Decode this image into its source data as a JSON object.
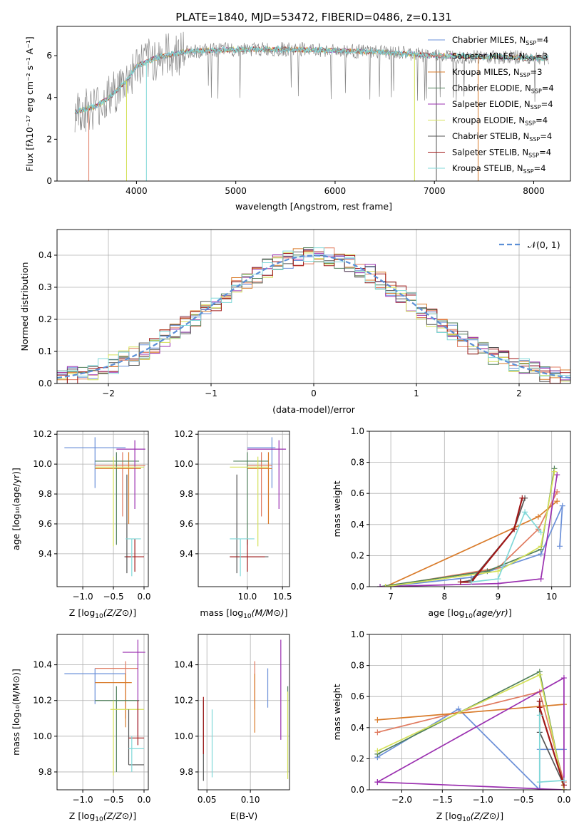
{
  "figure_title": "PLATE=1840, MJD=53472, FIBERID=0486, z=0.131",
  "series_styles": [
    {
      "name": "Chabrier MILES",
      "nssp": "4",
      "color": "#6a8fd8"
    },
    {
      "name": "Salpeter MILES",
      "nssp": "3",
      "color": "#e07a5f"
    },
    {
      "name": "Kroupa MILES",
      "nssp": "3",
      "color": "#d97b2a"
    },
    {
      "name": "Chabrier ELODIE",
      "nssp": "4",
      "color": "#4f7f5a"
    },
    {
      "name": "Salpeter ELODIE",
      "nssp": "4",
      "color": "#9b30b0"
    },
    {
      "name": "Kroupa ELODIE",
      "nssp": "4",
      "color": "#d4e157"
    },
    {
      "name": "Chabrier STELIB",
      "nssp": "4",
      "color": "#555555"
    },
    {
      "name": "Salpeter STELIB",
      "nssp": "4",
      "color": "#a01818"
    },
    {
      "name": "Kroupa STELIB",
      "nssp": "4",
      "color": "#80d8d8"
    }
  ],
  "chart_data": [
    {
      "id": "spectrum",
      "type": "line",
      "title": "PLATE=1840, MJD=53472, FIBERID=0486, z=0.131",
      "xlabel": "wavelength [Angstrom, rest frame]",
      "ylabel": "Flux [f_λ10^-17 erg cm^-2 s^-1 A^-1]",
      "xlim": [
        3200,
        8370
      ],
      "ylim": [
        0,
        7.4
      ],
      "xticks": [
        4000,
        5000,
        6000,
        7000,
        8000
      ],
      "yticks": [
        0,
        2,
        4,
        6
      ],
      "legend_position": "upper-right",
      "legend": [
        "Chabrier MILES, N_SSP=4",
        "Salpeter MILES, N_SSP=3",
        "Kroupa MILES, N_SSP=3",
        "Chabrier ELODIE, N_SSP=4",
        "Salpeter ELODIE, N_SSP=4",
        "Kroupa ELODIE, N_SSP=4",
        "Chabrier STELIB, N_SSP=4",
        "Salpeter STELIB, N_SSP=4",
        "Kroupa STELIB, N_SSP=4"
      ],
      "continuum": {
        "x": [
          3380,
          3600,
          3700,
          3900,
          4000,
          4200,
          4500,
          5000,
          5500,
          6000,
          6500,
          7000,
          7500,
          8000,
          8150
        ],
        "y": [
          3.3,
          3.6,
          3.9,
          4.8,
          5.5,
          5.9,
          6.2,
          6.3,
          6.3,
          6.25,
          6.15,
          6.0,
          5.95,
          5.9,
          5.85
        ]
      }
    },
    {
      "id": "residuals",
      "type": "line",
      "xlabel": "(data-model)/error",
      "ylabel": "Normed distribution",
      "xlim": [
        -2.5,
        2.5
      ],
      "ylim": [
        0,
        0.48
      ],
      "xticks": [
        -2,
        -1,
        0,
        1,
        2
      ],
      "yticks": [
        0.0,
        0.1,
        0.2,
        0.3,
        0.4
      ],
      "legend": [
        "𝒩(0, 1)"
      ],
      "legend_position": "upper-right",
      "gaussian": {
        "mu": 0,
        "sigma": 1
      }
    },
    {
      "id": "age-vs-Z",
      "type": "scatter",
      "xlabel": "Z [log10(Z/Z⊙)]",
      "ylabel": "age [log10(age/yr)]",
      "xlim": [
        -1.42,
        0.07
      ],
      "ylim": [
        9.18,
        10.22
      ],
      "xticks": [
        -1.0,
        -0.5,
        0.0
      ],
      "yticks": [
        9.4,
        9.6,
        9.8,
        10.0,
        10.2
      ],
      "points": [
        {
          "s": 0,
          "x": -0.8,
          "y": 10.11,
          "xe": [
            -1.3,
            -0.3
          ],
          "ye": [
            9.84,
            10.18
          ]
        },
        {
          "s": 1,
          "x": -0.35,
          "y": 9.99,
          "xe": [
            -0.8,
            0.02
          ],
          "ye": [
            9.65,
            10.08
          ]
        },
        {
          "s": 2,
          "x": -0.25,
          "y": 9.97,
          "xe": [
            -0.8,
            -0.05
          ],
          "ye": [
            9.6,
            10.08
          ]
        },
        {
          "s": 3,
          "x": -0.45,
          "y": 10.02,
          "xe": [
            -0.8,
            -0.08
          ],
          "ye": [
            9.46,
            10.08
          ]
        },
        {
          "s": 4,
          "x": -0.15,
          "y": 10.1,
          "xe": [
            -0.45,
            0.02
          ],
          "ye": [
            9.7,
            10.16
          ]
        },
        {
          "s": 5,
          "x": -0.5,
          "y": 9.98,
          "xe": [
            -0.8,
            0.0
          ],
          "ye": [
            9.45,
            10.05
          ]
        },
        {
          "s": 6,
          "x": -0.28,
          "y": 9.38,
          "xe": [
            -0.32,
            -0.22
          ],
          "ye": [
            9.27,
            9.93
          ]
        },
        {
          "s": 7,
          "x": -0.15,
          "y": 9.38,
          "xe": [
            -0.3,
            0.0
          ],
          "ye": [
            9.28,
            9.5
          ]
        },
        {
          "s": 8,
          "x": -0.2,
          "y": 9.5,
          "xe": [
            -0.3,
            -0.05
          ],
          "ye": [
            9.25,
            9.5
          ]
        }
      ]
    },
    {
      "id": "age-vs-mass",
      "type": "scatter",
      "xlabel": "mass [log10(M/M⊙)]",
      "ylabel": "",
      "xlim": [
        9.3,
        10.6
      ],
      "ylim": [
        9.18,
        10.22
      ],
      "xticks": [
        10.0,
        10.5
      ],
      "yticks": [
        9.4,
        9.6,
        9.8,
        10.0,
        10.2
      ],
      "points": [
        {
          "s": 0,
          "x": 10.35,
          "y": 10.11,
          "xe": [
            10.0,
            10.4
          ],
          "ye": [
            9.84,
            10.18
          ]
        },
        {
          "s": 1,
          "x": 10.2,
          "y": 9.99,
          "xe": [
            10.0,
            10.35
          ],
          "ye": [
            9.65,
            10.08
          ]
        },
        {
          "s": 2,
          "x": 10.3,
          "y": 9.97,
          "xe": [
            10.0,
            10.35
          ],
          "ye": [
            9.6,
            10.08
          ]
        },
        {
          "s": 3,
          "x": 10.0,
          "y": 10.02,
          "xe": [
            9.8,
            10.3
          ],
          "ye": [
            9.46,
            10.08
          ]
        },
        {
          "s": 4,
          "x": 10.45,
          "y": 10.1,
          "xe": [
            10.0,
            10.55
          ],
          "ye": [
            9.7,
            10.16
          ]
        },
        {
          "s": 5,
          "x": 10.15,
          "y": 9.98,
          "xe": [
            9.75,
            10.3
          ],
          "ye": [
            9.45,
            10.05
          ]
        },
        {
          "s": 6,
          "x": 9.85,
          "y": 9.38,
          "xe": [
            9.75,
            10.3
          ],
          "ye": [
            9.27,
            9.93
          ]
        },
        {
          "s": 7,
          "x": 10.0,
          "y": 9.38,
          "xe": [
            9.75,
            10.25
          ],
          "ye": [
            9.28,
            9.5
          ]
        },
        {
          "s": 8,
          "x": 9.9,
          "y": 9.5,
          "xe": [
            9.75,
            10.1
          ],
          "ye": [
            9.25,
            9.5
          ]
        }
      ]
    },
    {
      "id": "massweight-vs-age",
      "type": "line",
      "xlabel": "age [log10(age/yr)]",
      "ylabel": "mass weight",
      "xlim": [
        6.6,
        10.35
      ],
      "ylim": [
        0,
        1.0
      ],
      "xticks": [
        7,
        8,
        9,
        10
      ],
      "yticks": [
        0.0,
        0.2,
        0.4,
        0.6,
        0.8,
        1.0
      ],
      "series": [
        {
          "s": 0,
          "x": [
            6.9,
            8.5,
            9.8,
            10.2,
            10.15
          ],
          "y": [
            0.0,
            0.06,
            0.21,
            0.52,
            0.26
          ]
        },
        {
          "s": 1,
          "x": [
            6.9,
            9.0,
            9.75,
            10.1
          ],
          "y": [
            0.0,
            0.12,
            0.37,
            0.61
          ]
        },
        {
          "s": 2,
          "x": [
            6.9,
            9.75,
            10.1
          ],
          "y": [
            0.0,
            0.45,
            0.55
          ]
        },
        {
          "s": 3,
          "x": [
            6.8,
            8.8,
            9.8,
            10.05
          ],
          "y": [
            0.0,
            0.1,
            0.24,
            0.76
          ]
        },
        {
          "s": 4,
          "x": [
            6.8,
            9.0,
            9.8,
            10.1
          ],
          "y": [
            0.0,
            0.02,
            0.05,
            0.72
          ]
        },
        {
          "s": 5,
          "x": [
            6.9,
            9.0,
            9.8,
            10.05
          ],
          "y": [
            0.0,
            0.1,
            0.26,
            0.74
          ]
        },
        {
          "s": 6,
          "x": [
            8.3,
            8.5,
            9.3,
            9.5
          ],
          "y": [
            0.03,
            0.04,
            0.37,
            0.57
          ]
        },
        {
          "s": 7,
          "x": [
            8.3,
            8.5,
            9.3,
            9.45
          ],
          "y": [
            0.03,
            0.03,
            0.37,
            0.57
          ]
        },
        {
          "s": 8,
          "x": [
            8.5,
            9.0,
            9.5,
            9.8
          ],
          "y": [
            0.03,
            0.05,
            0.48,
            0.35
          ]
        }
      ]
    },
    {
      "id": "mass-vs-Z",
      "type": "scatter",
      "xlabel": "Z [log10(Z/Z⊙)]",
      "ylabel": "mass [log10(M/M⊙)]",
      "xlim": [
        -1.42,
        0.07
      ],
      "ylim": [
        9.7,
        10.57
      ],
      "xticks": [
        -1.0,
        -0.5,
        0.0
      ],
      "yticks": [
        9.8,
        10.0,
        10.2,
        10.4
      ],
      "points": [
        {
          "s": 0,
          "x": -0.8,
          "y": 10.35,
          "xe": [
            -1.3,
            -0.3
          ],
          "ye": [
            10.18,
            10.38
          ]
        },
        {
          "s": 1,
          "x": -0.3,
          "y": 10.38,
          "xe": [
            -0.8,
            -0.1
          ],
          "ye": [
            10.1,
            10.42
          ]
        },
        {
          "s": 2,
          "x": -0.3,
          "y": 10.3,
          "xe": [
            -0.8,
            -0.2
          ],
          "ye": [
            10.05,
            10.35
          ]
        },
        {
          "s": 3,
          "x": -0.45,
          "y": 10.2,
          "xe": [
            -0.8,
            -0.08
          ],
          "ye": [
            9.8,
            10.28
          ]
        },
        {
          "s": 4,
          "x": -0.1,
          "y": 10.47,
          "xe": [
            -0.35,
            0.02
          ],
          "ye": [
            10.0,
            10.54
          ]
        },
        {
          "s": 5,
          "x": -0.5,
          "y": 10.15,
          "xe": [
            -0.55,
            0.0
          ],
          "ye": [
            9.78,
            10.2
          ]
        },
        {
          "s": 6,
          "x": -0.25,
          "y": 9.84,
          "xe": [
            -0.25,
            0.0
          ],
          "ye": [
            9.84,
            10.15
          ]
        },
        {
          "s": 7,
          "x": -0.1,
          "y": 9.99,
          "xe": [
            -0.25,
            0.0
          ],
          "ye": [
            9.95,
            10.2
          ]
        },
        {
          "s": 8,
          "x": -0.2,
          "y": 9.93,
          "xe": [
            -0.25,
            0.0
          ],
          "ye": [
            9.8,
            10.0
          ]
        }
      ]
    },
    {
      "id": "mass-vs-EBV",
      "type": "scatter",
      "xlabel": "E(B-V)",
      "ylabel": "",
      "xlim": [
        0.04,
        0.145
      ],
      "ylim": [
        9.7,
        10.57
      ],
      "xticks": [
        0.05,
        0.1
      ],
      "yticks": [
        9.8,
        10.0,
        10.2,
        10.4
      ],
      "points": [
        {
          "s": 0,
          "x": 0.12,
          "y": 10.35,
          "ye": [
            10.16,
            10.38
          ]
        },
        {
          "s": 1,
          "x": 0.105,
          "y": 10.38,
          "ye": [
            10.15,
            10.42
          ]
        },
        {
          "s": 2,
          "x": 0.105,
          "y": 10.3,
          "ye": [
            10.02,
            10.35
          ]
        },
        {
          "s": 3,
          "x": 0.143,
          "y": 10.2,
          "ye": [
            9.8,
            10.28
          ]
        },
        {
          "s": 4,
          "x": 0.135,
          "y": 10.47,
          "ye": [
            9.98,
            10.54
          ]
        },
        {
          "s": 5,
          "x": 0.143,
          "y": 10.15,
          "ye": [
            9.76,
            10.25
          ]
        },
        {
          "s": 6,
          "x": 0.046,
          "y": 9.84,
          "ye": [
            9.75,
            10.2
          ]
        },
        {
          "s": 7,
          "x": 0.046,
          "y": 9.99,
          "ye": [
            9.9,
            10.22
          ]
        },
        {
          "s": 8,
          "x": 0.056,
          "y": 9.93,
          "ye": [
            9.77,
            10.15
          ]
        }
      ]
    },
    {
      "id": "massweight-vs-Z",
      "type": "line",
      "xlabel": "Z [log10(Z/Z⊙)]",
      "ylabel": "mass weight",
      "xlim": [
        -2.4,
        0.08
      ],
      "ylim": [
        0,
        1.0
      ],
      "xticks": [
        -2.0,
        -1.5,
        -1.0,
        -0.5,
        0.0
      ],
      "yticks": [
        0.0,
        0.2,
        0.4,
        0.6,
        0.8,
        1.0
      ],
      "series": [
        {
          "s": 0,
          "x": [
            -2.3,
            -1.3,
            -0.3,
            -0.3,
            0.0
          ],
          "y": [
            0.21,
            0.52,
            0.0,
            0.26,
            0.26
          ]
        },
        {
          "s": 1,
          "x": [
            -2.3,
            -0.3,
            0.0
          ],
          "y": [
            0.37,
            0.63,
            0.05
          ]
        },
        {
          "s": 2,
          "x": [
            -2.3,
            0.0
          ],
          "y": [
            0.45,
            0.55
          ]
        },
        {
          "s": 3,
          "x": [
            -2.3,
            -0.3,
            0.0
          ],
          "y": [
            0.23,
            0.76,
            0.0
          ]
        },
        {
          "s": 4,
          "x": [
            -2.3,
            -0.0,
            0.0,
            -2.3
          ],
          "y": [
            0.05,
            0.0,
            0.72,
            0.05
          ]
        },
        {
          "s": 5,
          "x": [
            -2.3,
            -0.3,
            0.0
          ],
          "y": [
            0.25,
            0.74,
            0.0
          ]
        },
        {
          "s": 6,
          "x": [
            -0.3,
            -0.3,
            0.0
          ],
          "y": [
            0.57,
            0.37,
            0.03
          ]
        },
        {
          "s": 7,
          "x": [
            -0.3,
            -0.3,
            0.0
          ],
          "y": [
            0.57,
            0.53,
            0.03
          ]
        },
        {
          "s": 8,
          "x": [
            -0.3,
            -0.3,
            0.0
          ],
          "y": [
            0.48,
            0.05,
            0.06
          ]
        }
      ]
    }
  ]
}
